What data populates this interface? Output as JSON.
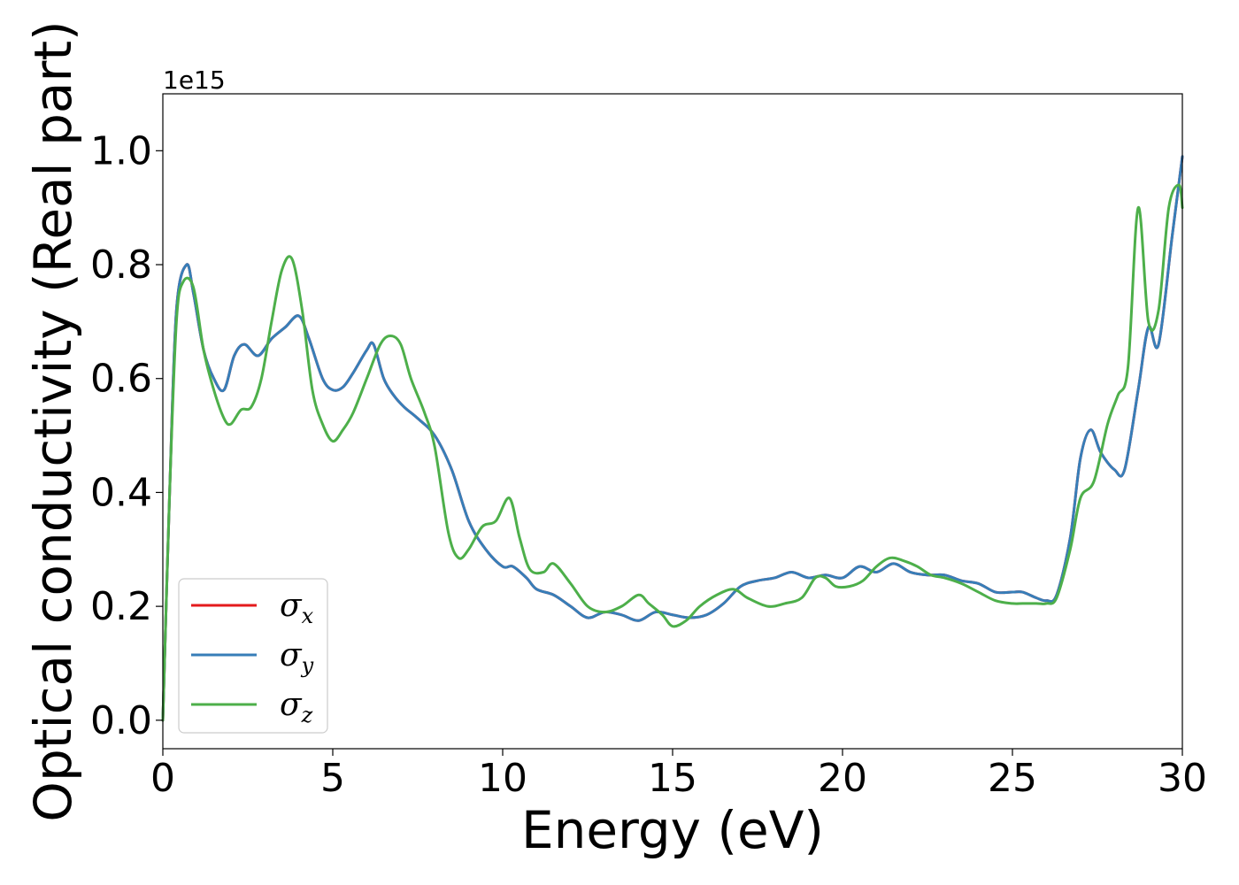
{
  "chart_data": {
    "type": "line",
    "xlabel": "Energy (eV)",
    "ylabel": "Optical conductivity (Real part)",
    "y_offset_label": "1e15",
    "xlim": [
      0,
      30
    ],
    "ylim": [
      -0.05,
      1.1
    ],
    "y_scale": 1000000000000000.0,
    "xticks": [
      0,
      5,
      10,
      15,
      20,
      25,
      30
    ],
    "xtick_labels": [
      "0",
      "5",
      "10",
      "15",
      "20",
      "25",
      "30"
    ],
    "yticks": [
      0.0,
      0.2,
      0.4,
      0.6,
      0.8,
      1.0
    ],
    "ytick_labels": [
      "0.0",
      "0.2",
      "0.4",
      "0.6",
      "0.8",
      "1.0"
    ],
    "grid": false,
    "legend_position": "lower-left",
    "series": [
      {
        "name": "σx",
        "symbol": "σ",
        "subscript": "x",
        "color": "#e41a1c",
        "x": [
          0,
          0.2,
          0.4,
          0.7,
          0.9,
          1.2,
          1.5,
          1.8,
          2.1,
          2.4,
          2.8,
          3.2,
          3.6,
          4.0,
          4.3,
          4.7,
          5.0,
          5.3,
          5.6,
          6.0,
          6.2,
          6.5,
          6.8,
          7.1,
          7.5,
          8.0,
          8.5,
          9.0,
          9.5,
          10.0,
          10.3,
          10.7,
          11.0,
          11.5,
          12.0,
          12.5,
          13.0,
          13.5,
          14.0,
          14.5,
          15.0,
          15.5,
          16.0,
          16.5,
          17.0,
          17.5,
          18.0,
          18.5,
          19.0,
          19.5,
          20.0,
          20.5,
          21.0,
          21.5,
          22.0,
          22.5,
          23.0,
          23.5,
          24.0,
          24.5,
          25.0,
          25.3,
          25.7,
          26.0,
          26.3,
          26.7,
          27.0,
          27.3,
          27.6,
          28.0,
          28.3,
          28.7,
          29.0,
          29.3,
          29.7,
          30.0
        ],
        "y": [
          0.0,
          0.4,
          0.72,
          0.8,
          0.75,
          0.65,
          0.6,
          0.58,
          0.64,
          0.66,
          0.64,
          0.67,
          0.69,
          0.71,
          0.67,
          0.6,
          0.58,
          0.585,
          0.61,
          0.65,
          0.66,
          0.6,
          0.57,
          0.55,
          0.53,
          0.5,
          0.44,
          0.35,
          0.3,
          0.27,
          0.27,
          0.25,
          0.23,
          0.22,
          0.2,
          0.18,
          0.19,
          0.185,
          0.175,
          0.19,
          0.185,
          0.18,
          0.185,
          0.205,
          0.235,
          0.245,
          0.25,
          0.26,
          0.25,
          0.255,
          0.25,
          0.27,
          0.26,
          0.275,
          0.26,
          0.255,
          0.255,
          0.245,
          0.24,
          0.225,
          0.225,
          0.225,
          0.215,
          0.21,
          0.22,
          0.32,
          0.46,
          0.51,
          0.47,
          0.44,
          0.44,
          0.58,
          0.69,
          0.66,
          0.85,
          0.99
        ]
      },
      {
        "name": "σy",
        "symbol": "σ",
        "subscript": "y",
        "color": "#377eb8",
        "x": [
          0,
          0.2,
          0.4,
          0.7,
          0.9,
          1.2,
          1.5,
          1.8,
          2.1,
          2.4,
          2.8,
          3.2,
          3.6,
          4.0,
          4.3,
          4.7,
          5.0,
          5.3,
          5.6,
          6.0,
          6.2,
          6.5,
          6.8,
          7.1,
          7.5,
          8.0,
          8.5,
          9.0,
          9.5,
          10.0,
          10.3,
          10.7,
          11.0,
          11.5,
          12.0,
          12.5,
          13.0,
          13.5,
          14.0,
          14.5,
          15.0,
          15.5,
          16.0,
          16.5,
          17.0,
          17.5,
          18.0,
          18.5,
          19.0,
          19.5,
          20.0,
          20.5,
          21.0,
          21.5,
          22.0,
          22.5,
          23.0,
          23.5,
          24.0,
          24.5,
          25.0,
          25.3,
          25.7,
          26.0,
          26.3,
          26.7,
          27.0,
          27.3,
          27.6,
          28.0,
          28.3,
          28.7,
          29.0,
          29.3,
          29.7,
          30.0
        ],
        "y": [
          0.0,
          0.4,
          0.72,
          0.8,
          0.75,
          0.65,
          0.6,
          0.58,
          0.64,
          0.66,
          0.64,
          0.67,
          0.69,
          0.71,
          0.67,
          0.6,
          0.58,
          0.585,
          0.61,
          0.65,
          0.66,
          0.6,
          0.57,
          0.55,
          0.53,
          0.5,
          0.44,
          0.35,
          0.3,
          0.27,
          0.27,
          0.25,
          0.23,
          0.22,
          0.2,
          0.18,
          0.19,
          0.185,
          0.175,
          0.19,
          0.185,
          0.18,
          0.185,
          0.205,
          0.235,
          0.245,
          0.25,
          0.26,
          0.25,
          0.255,
          0.25,
          0.27,
          0.26,
          0.275,
          0.26,
          0.255,
          0.255,
          0.245,
          0.24,
          0.225,
          0.225,
          0.225,
          0.215,
          0.21,
          0.22,
          0.32,
          0.46,
          0.51,
          0.47,
          0.44,
          0.44,
          0.58,
          0.69,
          0.66,
          0.85,
          0.99
        ]
      },
      {
        "name": "σz",
        "symbol": "σ",
        "subscript": "z",
        "color": "#4daf4a",
        "x": [
          0,
          0.2,
          0.4,
          0.6,
          0.9,
          1.2,
          1.5,
          1.8,
          2.0,
          2.3,
          2.6,
          2.9,
          3.2,
          3.5,
          3.8,
          4.1,
          4.4,
          4.7,
          5.0,
          5.3,
          5.6,
          6.0,
          6.4,
          6.7,
          7.0,
          7.3,
          7.7,
          8.0,
          8.4,
          8.7,
          9.0,
          9.4,
          9.8,
          10.2,
          10.5,
          10.8,
          11.2,
          11.5,
          12.0,
          12.5,
          13.0,
          13.5,
          14.0,
          14.3,
          14.7,
          15.0,
          15.4,
          15.8,
          16.3,
          16.8,
          17.2,
          17.8,
          18.3,
          18.8,
          19.2,
          19.5,
          19.8,
          20.2,
          20.6,
          21.0,
          21.4,
          21.8,
          22.2,
          22.6,
          23.0,
          23.5,
          24.0,
          24.5,
          25.0,
          25.3,
          25.7,
          26.0,
          26.3,
          26.7,
          27.0,
          27.4,
          27.8,
          28.1,
          28.4,
          28.7,
          29.0,
          29.3,
          29.6,
          29.9,
          30.0
        ],
        "y": [
          0.0,
          0.4,
          0.7,
          0.77,
          0.76,
          0.65,
          0.58,
          0.53,
          0.52,
          0.545,
          0.55,
          0.6,
          0.7,
          0.79,
          0.81,
          0.72,
          0.58,
          0.52,
          0.49,
          0.51,
          0.54,
          0.6,
          0.66,
          0.675,
          0.66,
          0.6,
          0.54,
          0.48,
          0.33,
          0.285,
          0.3,
          0.34,
          0.35,
          0.39,
          0.32,
          0.265,
          0.26,
          0.275,
          0.24,
          0.2,
          0.19,
          0.2,
          0.22,
          0.205,
          0.185,
          0.165,
          0.175,
          0.2,
          0.22,
          0.23,
          0.215,
          0.2,
          0.205,
          0.215,
          0.25,
          0.25,
          0.235,
          0.235,
          0.245,
          0.27,
          0.285,
          0.28,
          0.27,
          0.255,
          0.25,
          0.24,
          0.225,
          0.21,
          0.205,
          0.205,
          0.205,
          0.205,
          0.215,
          0.3,
          0.39,
          0.42,
          0.52,
          0.57,
          0.62,
          0.9,
          0.7,
          0.72,
          0.9,
          0.94,
          0.9
        ]
      }
    ]
  }
}
